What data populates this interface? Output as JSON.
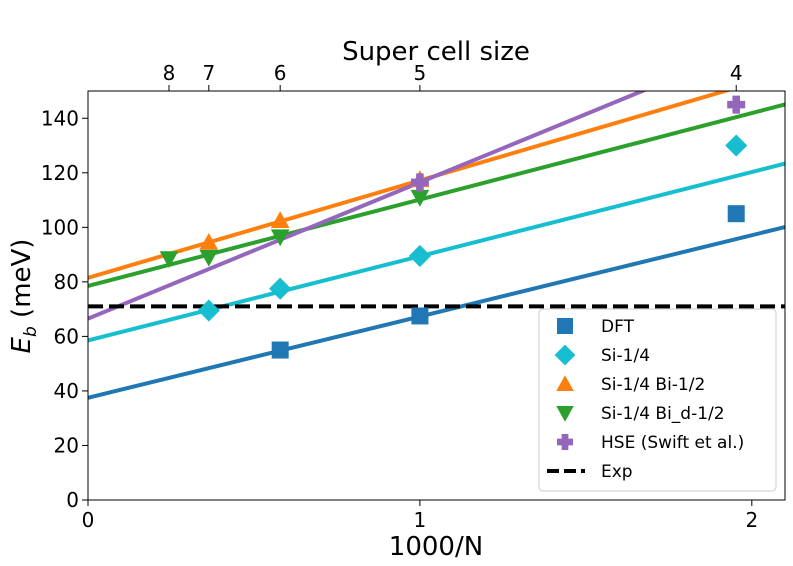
{
  "chart_data": {
    "type": "scatter",
    "xlabel": "1000/N",
    "ylabel_main": "E",
    "ylabel_sub": "b",
    "ylabel_unit": "(meV)",
    "top_axis_label": "Super cell size",
    "xlim": [
      0,
      2.1
    ],
    "ylim": [
      0,
      150
    ],
    "x_ticks": [
      {
        "value": 0,
        "label": "0"
      },
      {
        "value": 1,
        "label": "1"
      },
      {
        "value": 2,
        "label": "2"
      }
    ],
    "y_ticks": [
      {
        "value": 0,
        "label": "0"
      },
      {
        "value": 20,
        "label": "20"
      },
      {
        "value": 40,
        "label": "40"
      },
      {
        "value": 60,
        "label": "60"
      },
      {
        "value": 80,
        "label": "80"
      },
      {
        "value": 100,
        "label": "100"
      },
      {
        "value": 120,
        "label": "120"
      },
      {
        "value": 140,
        "label": "140"
      }
    ],
    "top_ticks": [
      {
        "value": 0.244,
        "label": "8"
      },
      {
        "value": 0.364,
        "label": "7"
      },
      {
        "value": 0.579,
        "label": "6"
      },
      {
        "value": 1.0,
        "label": "5"
      },
      {
        "value": 1.953,
        "label": "4"
      }
    ],
    "series": [
      {
        "name": "DFT",
        "color": "#1f77b4",
        "marker": "square",
        "x": [
          0.579,
          1.0,
          1.953
        ],
        "y": [
          55,
          67.5,
          105
        ],
        "fit": {
          "intercept": 37.5,
          "slope": 29.8
        }
      },
      {
        "name": "Si-1/4",
        "color": "#17becf",
        "marker": "diamond",
        "x": [
          0.364,
          0.579,
          1.0,
          1.953
        ],
        "y": [
          69.5,
          77.5,
          89.5,
          130
        ],
        "fit": {
          "intercept": 58.5,
          "slope": 30.9
        }
      },
      {
        "name": "Si-1/4 Bi-1/2",
        "color": "#ff7f0e",
        "marker": "triangle-up",
        "x": [
          0.364,
          0.579,
          1.0
        ],
        "y": [
          94.5,
          102.5,
          117.5
        ],
        "fit": {
          "intercept": 81.5,
          "slope": 35.7
        }
      },
      {
        "name": "Si-1/4 Bi_d-1/2",
        "color": "#2ca02c",
        "marker": "triangle-down",
        "x": [
          0.244,
          0.364,
          0.579,
          1.0
        ],
        "y": [
          88.5,
          89,
          96.5,
          111
        ],
        "fit": {
          "intercept": 78.5,
          "slope": 31.7
        }
      },
      {
        "name": "HSE (Swift et al.)",
        "color": "#9467bd",
        "marker": "plus",
        "x": [
          1.0,
          1.953
        ],
        "y": [
          116.5,
          145
        ],
        "fit": {
          "intercept": 66.5,
          "slope": 50.0
        }
      }
    ],
    "reference_line": {
      "name": "Exp",
      "y": 71,
      "color": "#000000",
      "style": "dashed"
    },
    "legend_position": "lower-right"
  }
}
